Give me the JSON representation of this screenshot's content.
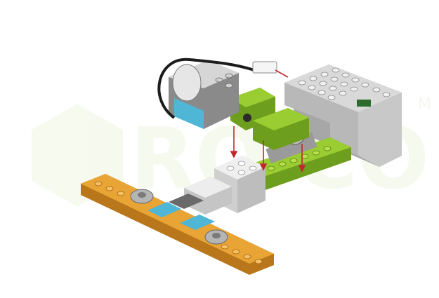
{
  "watermark": {
    "text": "ROBOCO",
    "fragment": "RO  CO",
    "letter_m": "M"
  },
  "colors": {
    "background": "#ffffff",
    "lime": "#9acd32",
    "lime_dark": "#6e9e1d",
    "orange": "#e8a536",
    "orange_dark": "#b9761a",
    "light_gray": "#d9d9d9",
    "mid_gray": "#9a9a9a",
    "dark_gray": "#5a5a5a",
    "azure": "#4fb6d6",
    "arrow_red": "#c0282d",
    "cable": "#1c1c1c"
  },
  "parts": [
    "smarthub",
    "medium-motor",
    "motor-cable",
    "lime-brick-top",
    "lime-base-plate",
    "gray-gear-axle",
    "white-bricks-stack",
    "orange-rack-plate",
    "azure-tiles",
    "turntable-discs"
  ],
  "assembly_arrows": 4
}
